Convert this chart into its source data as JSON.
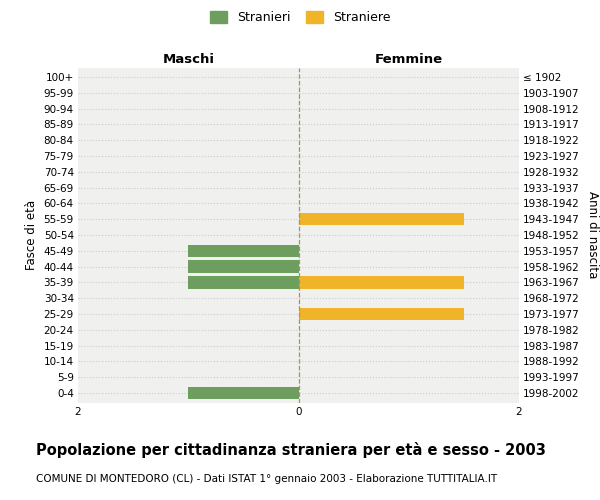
{
  "age_groups_top_to_bottom": [
    "100+",
    "95-99",
    "90-94",
    "85-89",
    "80-84",
    "75-79",
    "70-74",
    "65-69",
    "60-64",
    "55-59",
    "50-54",
    "45-49",
    "40-44",
    "35-39",
    "30-34",
    "25-29",
    "20-24",
    "15-19",
    "10-14",
    "5-9",
    "0-4"
  ],
  "birth_years_top_to_bottom": [
    "≤ 1902",
    "1903-1907",
    "1908-1912",
    "1913-1917",
    "1918-1922",
    "1923-1927",
    "1928-1932",
    "1933-1937",
    "1938-1942",
    "1943-1947",
    "1948-1952",
    "1953-1957",
    "1958-1962",
    "1963-1967",
    "1968-1972",
    "1973-1977",
    "1978-1982",
    "1983-1987",
    "1988-1992",
    "1993-1997",
    "1998-2002"
  ],
  "males_top_to_bottom": [
    0,
    0,
    0,
    0,
    0,
    0,
    0,
    0,
    0,
    0,
    0,
    1,
    1,
    1,
    0,
    0,
    0,
    0,
    0,
    0,
    1
  ],
  "females_top_to_bottom": [
    0,
    0,
    0,
    0,
    0,
    0,
    0,
    0,
    0,
    1.5,
    0,
    0,
    0,
    1.5,
    0,
    1.5,
    0,
    0,
    0,
    0,
    0
  ],
  "male_color": "#6d9e5e",
  "female_color": "#f0b429",
  "male_label": "Stranieri",
  "female_label": "Straniere",
  "xlim": 2,
  "title": "Popolazione per cittadinanza straniera per età e sesso - 2003",
  "subtitle": "COMUNE DI MONTEDORO (CL) - Dati ISTAT 1° gennaio 2003 - Elaborazione TUTTITALIA.IT",
  "left_header": "Maschi",
  "right_header": "Femmine",
  "left_axis_label": "Fasce di età",
  "right_axis_label": "Anni di nascita",
  "plot_bg_color": "#f0f0ee",
  "fig_bg_color": "#ffffff",
  "grid_color": "#cccccc",
  "tick_fontsize": 7.5,
  "header_fontsize": 9.5,
  "title_fontsize": 10.5,
  "subtitle_fontsize": 7.5
}
